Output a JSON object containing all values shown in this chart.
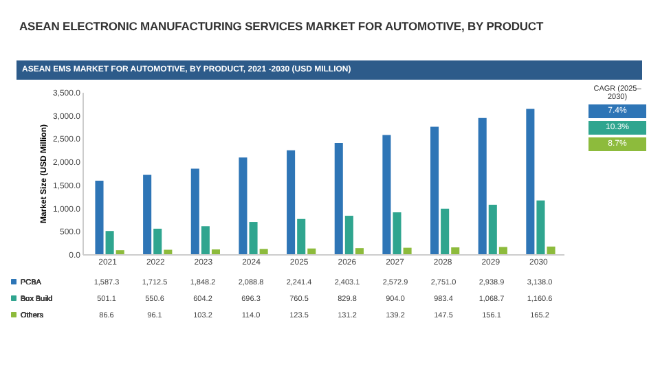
{
  "chart_data": {
    "type": "bar",
    "title": "ASEAN ELECTRONIC MANUFACTURING SERVICES MARKET FOR AUTOMOTIVE, BY PRODUCT",
    "subtitle": "ASEAN EMS MARKET FOR AUTOMOTIVE, BY PRODUCT, 2021 -2030 (USD MILLION)",
    "ylabel": "Market Size (USD Million)",
    "categories": [
      "2021",
      "2022",
      "2023",
      "2024",
      "2025",
      "2026",
      "2027",
      "2028",
      "2029",
      "2030"
    ],
    "series": [
      {
        "name": "PCBA",
        "color": "#2e75b6",
        "values": [
          1587.3,
          1712.5,
          1848.2,
          2088.8,
          2241.4,
          2403.1,
          2572.9,
          2751.0,
          2938.9,
          3138.0
        ],
        "value_labels": [
          "1,587.3",
          "1,712.5",
          "1,848.2",
          "2,088.8",
          "2,241.4",
          "2,403.1",
          "2,572.9",
          "2,751.0",
          "2,938.9",
          "3,138.0"
        ]
      },
      {
        "name": "Box Build",
        "color": "#2fa58f",
        "values": [
          501.1,
          550.6,
          604.2,
          696.3,
          760.5,
          829.8,
          904.0,
          983.4,
          1068.7,
          1160.6
        ],
        "value_labels": [
          "501.1",
          "550.6",
          "604.2",
          "696.3",
          "760.5",
          "829.8",
          "904.0",
          "983.4",
          "1,068.7",
          "1,160.6"
        ]
      },
      {
        "name": "Others",
        "color": "#8dbb3c",
        "values": [
          86.6,
          96.1,
          103.2,
          114.0,
          123.5,
          131.2,
          139.2,
          147.5,
          156.1,
          165.2
        ],
        "value_labels": [
          "86.6",
          "96.1",
          "103.2",
          "114.0",
          "123.5",
          "131.2",
          "139.2",
          "147.5",
          "156.1",
          "165.2"
        ]
      }
    ],
    "ylim": [
      0,
      3500
    ],
    "yticks": [
      {
        "value": 0,
        "label": "0.0"
      },
      {
        "value": 500,
        "label": "500.0"
      },
      {
        "value": 1000,
        "label": "1,000.0"
      },
      {
        "value": 1500,
        "label": "1,500.0"
      },
      {
        "value": 2000,
        "label": "2,000.0"
      },
      {
        "value": 2500,
        "label": "2,500.0"
      },
      {
        "value": 3000,
        "label": "3,000.0"
      },
      {
        "value": 3500,
        "label": "3,500.0"
      }
    ],
    "grid": false,
    "legend": "bottom",
    "annotations": [
      "CAGR (2025–2030)",
      "7.4%",
      "10.3%",
      "8.7%"
    ]
  }
}
